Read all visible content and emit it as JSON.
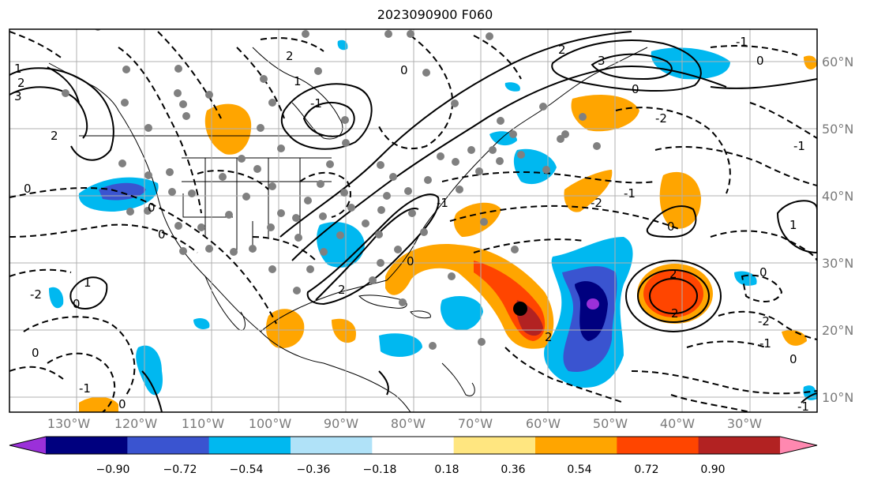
{
  "title": "2023090900 F060",
  "lon_labels": [
    "130°W",
    "120°W",
    "110°W",
    "100°W",
    "90°W",
    "80°W",
    "70°W",
    "60°W",
    "50°W",
    "40°W",
    "30°W"
  ],
  "lat_labels": [
    "60°N",
    "50°N",
    "40°N",
    "30°N",
    "20°N",
    "10°N"
  ],
  "colorbar": {
    "ticks": [
      "−0.90",
      "−0.72",
      "−0.54",
      "−0.36",
      "−0.18",
      "0.18",
      "0.36",
      "0.54",
      "0.72",
      "0.90"
    ],
    "colors": [
      "#9b30d9",
      "#00007f",
      "#3a54d0",
      "#00b8f0",
      "#b0e2f8",
      "#ffffff",
      "#ffe680",
      "#ffa500",
      "#ff4500",
      "#b22222",
      "#ff88b0"
    ]
  },
  "contour_labels": [
    "0",
    "-1",
    "-2",
    "1",
    "2",
    "3"
  ],
  "colors": {
    "contour": "#000000",
    "dots": "#808080",
    "grid": "#b0b0b0",
    "land": "#000000"
  }
}
